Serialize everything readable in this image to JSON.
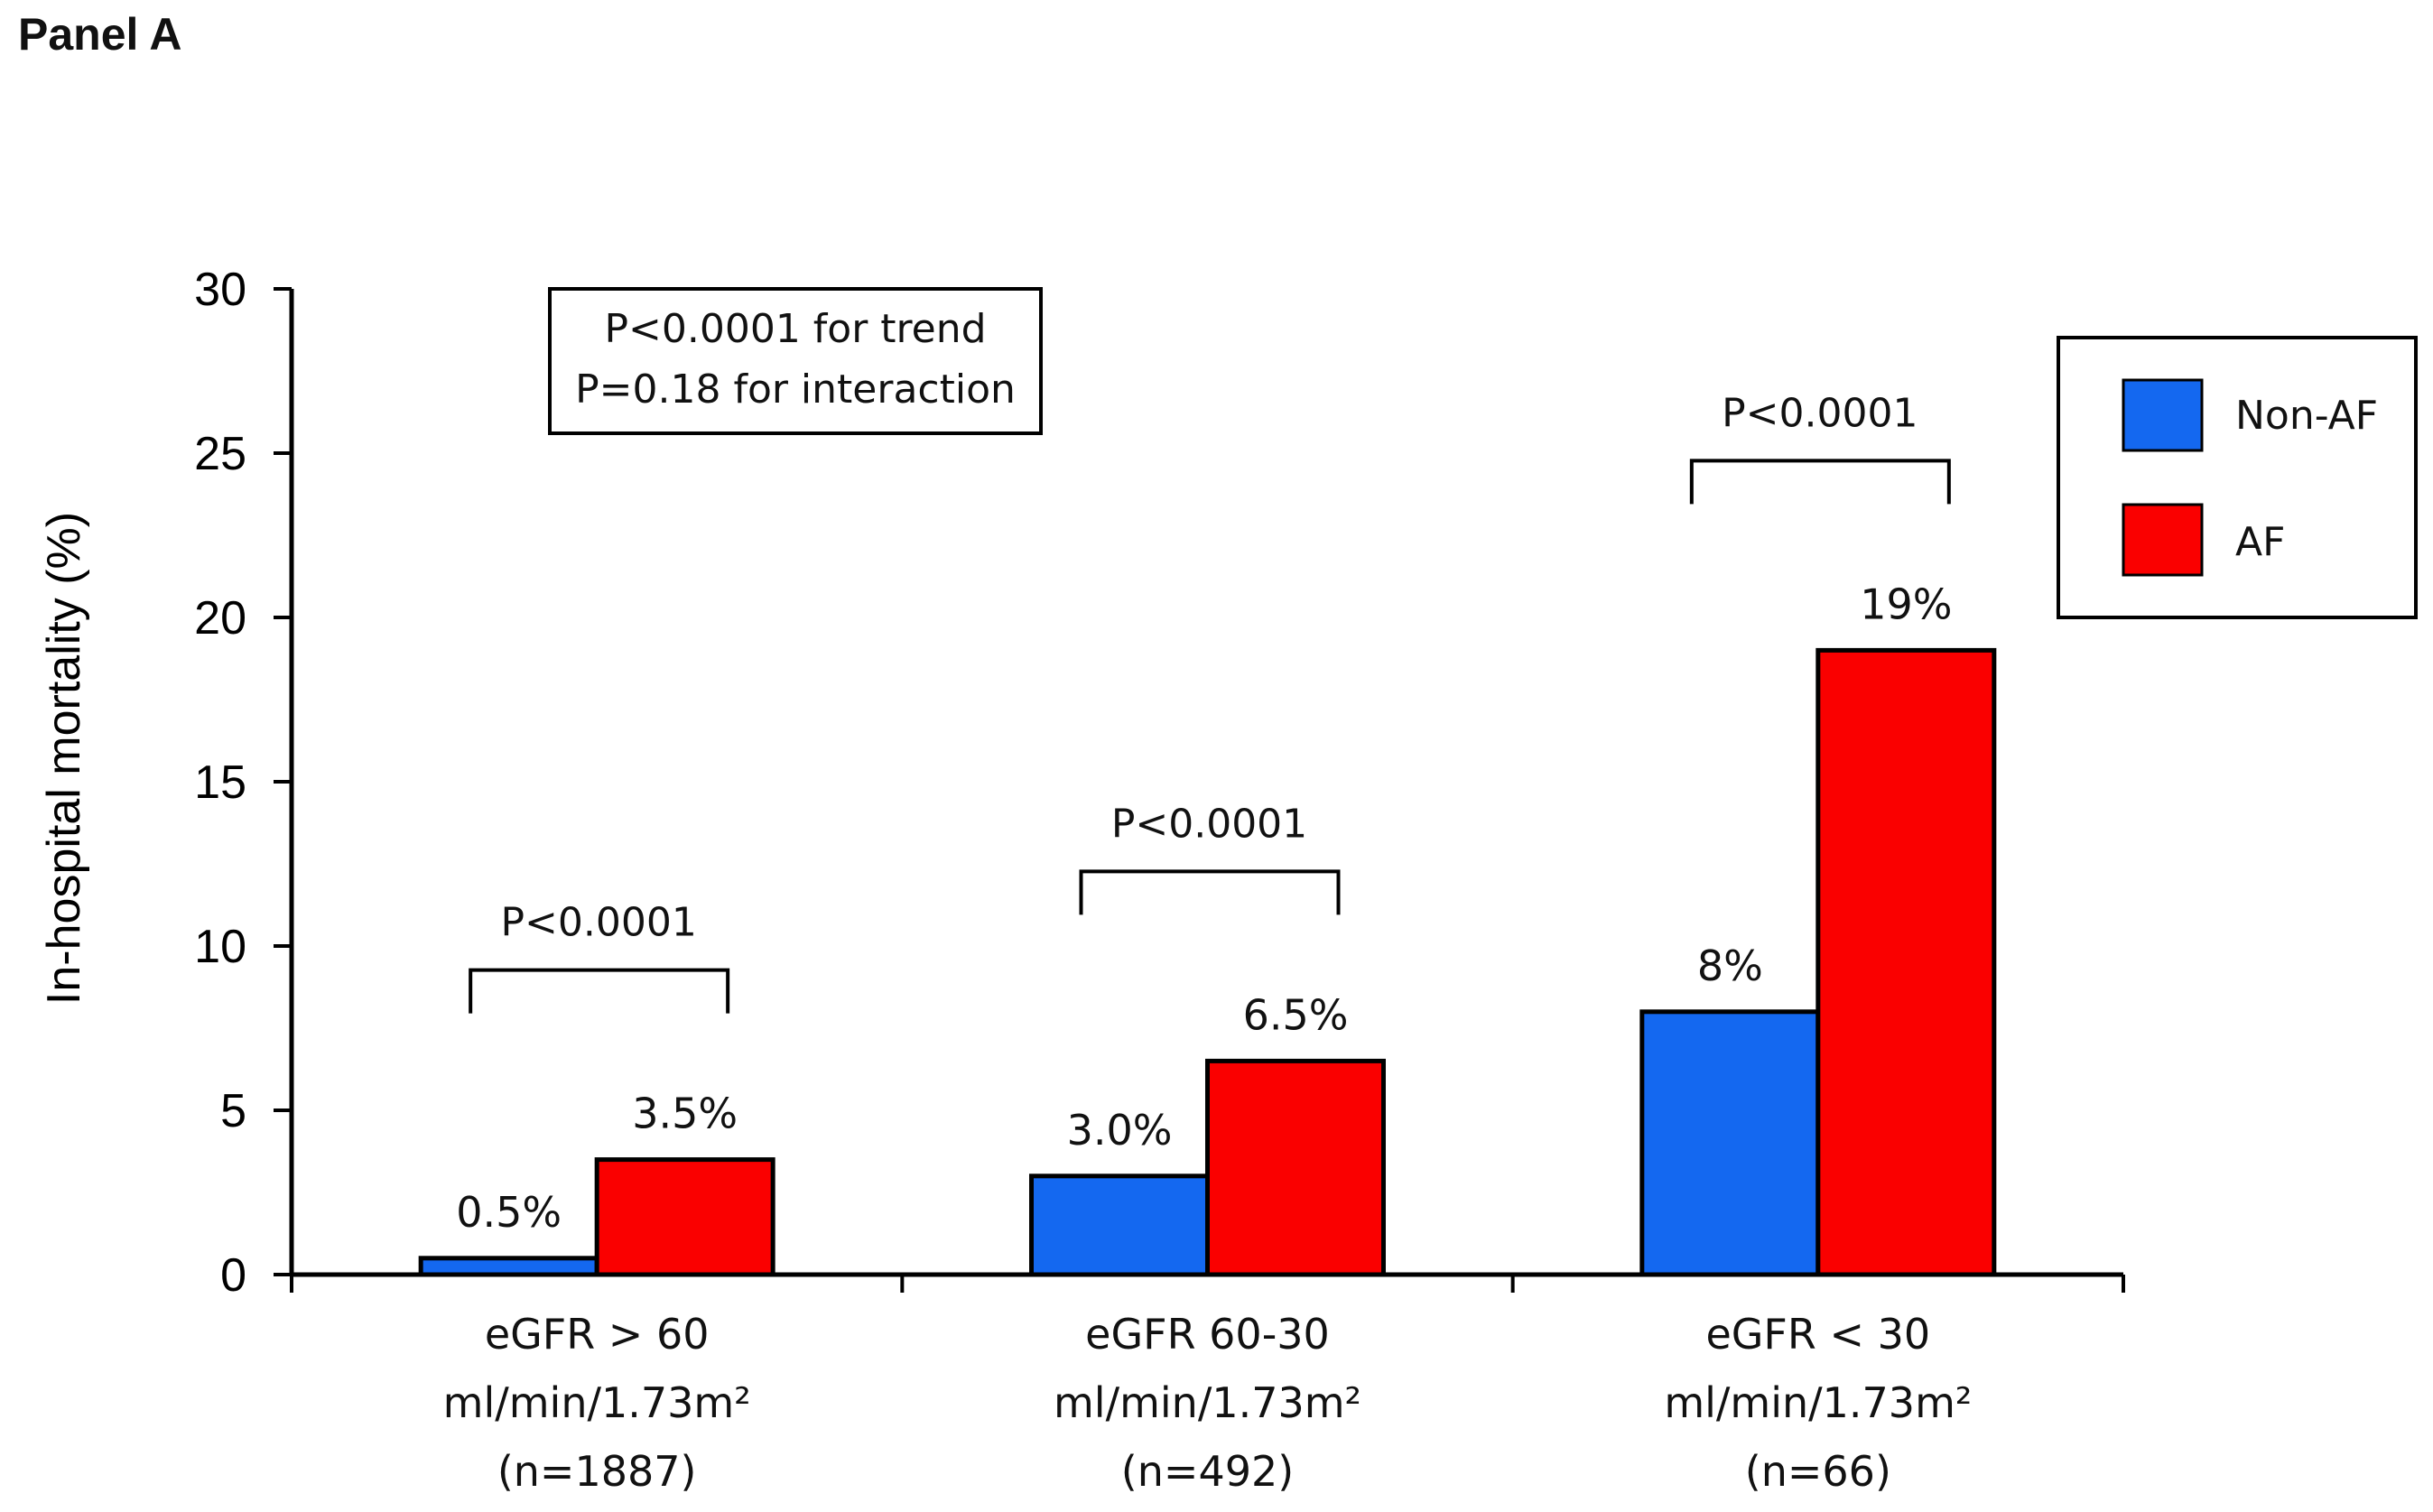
{
  "panel_title": "Panel A",
  "colors": {
    "non_af": "#1468f0",
    "af": "#fa0000",
    "axis": "#000000"
  },
  "chart_data": {
    "type": "bar",
    "title": "",
    "xlabel": "",
    "ylabel": "In-hospital mortality (%)",
    "ylim": [
      0,
      30
    ],
    "yticks": [
      0,
      5,
      10,
      15,
      20,
      25,
      30
    ],
    "categories": [
      {
        "line1": "eGFR > 60",
        "line2": "ml/min/1.73m²",
        "line3": "(n=1887)"
      },
      {
        "line1": "eGFR 60-30",
        "line2": "ml/min/1.73m²",
        "line3": "(n=492)"
      },
      {
        "line1": "eGFR < 30",
        "line2": "ml/min/1.73m²",
        "line3": "(n=66)"
      }
    ],
    "series": [
      {
        "name": "Non-AF",
        "values": [
          0.5,
          3.0,
          8
        ],
        "labels": [
          "0.5%",
          "3.0%",
          "8%"
        ]
      },
      {
        "name": "AF",
        "values": [
          3.5,
          6.5,
          19
        ],
        "labels": [
          "3.5%",
          "6.5%",
          "19%"
        ]
      }
    ],
    "group_pvalues": [
      "P<0.0001",
      "P<0.0001",
      "P<0.0001"
    ],
    "stat_box": [
      "P<0.0001 for trend",
      "P=0.18 for interaction"
    ],
    "legend": {
      "placement": "top-right",
      "entries": [
        "Non-AF",
        "AF"
      ]
    }
  }
}
